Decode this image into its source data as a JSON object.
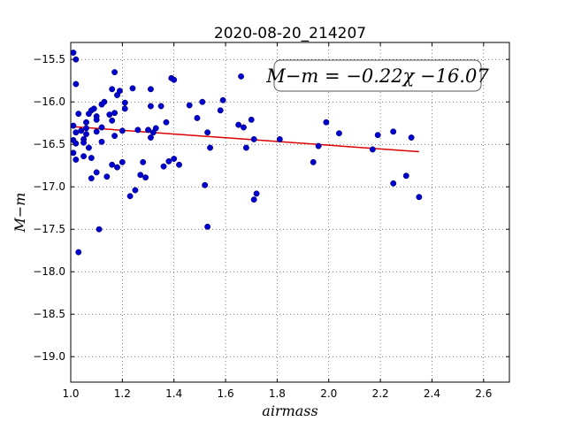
{
  "chart_data": {
    "type": "scatter",
    "title": "2020-08-20_214207",
    "xlabel": "airmass",
    "ylabel": "M−m",
    "xlim": [
      1.0,
      2.7
    ],
    "ylim": [
      -19.3,
      -15.3
    ],
    "y_inverted": true,
    "grid": true,
    "xticks": [
      1.0,
      1.2,
      1.4,
      1.6,
      1.8,
      2.0,
      2.2,
      2.4,
      2.6
    ],
    "xtick_labels": [
      "1.0",
      "1.2",
      "1.4",
      "1.6",
      "1.8",
      "2.0",
      "2.2",
      "2.4",
      "2.6"
    ],
    "yticks": [
      -15.5,
      -16.0,
      -16.5,
      -17.0,
      -17.5,
      -18.0,
      -18.5,
      -19.0
    ],
    "ytick_labels": [
      "−15.5",
      "−16.0",
      "−16.5",
      "−17.0",
      "−17.5",
      "−18.0",
      "−18.5",
      "−19.0"
    ],
    "annotation": "M−m = −0.22χ −16.07",
    "colors": {
      "points": "#0000cc",
      "fit_line": "#dd0000"
    },
    "fit_line": {
      "slope": -0.22,
      "intercept": -16.07,
      "x_range": [
        1.01,
        2.35
      ]
    },
    "points": [
      [
        1.01,
        -15.42
      ],
      [
        1.02,
        -15.5
      ],
      [
        1.02,
        -15.79
      ],
      [
        1.01,
        -16.28
      ],
      [
        1.02,
        -16.36
      ],
      [
        1.03,
        -16.14
      ],
      [
        1.01,
        -16.45
      ],
      [
        1.02,
        -16.49
      ],
      [
        1.01,
        -16.6
      ],
      [
        1.02,
        -16.68
      ],
      [
        1.03,
        -17.77
      ],
      [
        1.04,
        -16.34
      ],
      [
        1.05,
        -16.44
      ],
      [
        1.05,
        -16.48
      ],
      [
        1.05,
        -16.64
      ],
      [
        1.06,
        -16.24
      ],
      [
        1.06,
        -16.31
      ],
      [
        1.06,
        -16.38
      ],
      [
        1.07,
        -16.14
      ],
      [
        1.07,
        -16.54
      ],
      [
        1.08,
        -16.1
      ],
      [
        1.08,
        -16.66
      ],
      [
        1.08,
        -16.9
      ],
      [
        1.09,
        -16.08
      ],
      [
        1.1,
        -16.17
      ],
      [
        1.1,
        -16.21
      ],
      [
        1.1,
        -16.35
      ],
      [
        1.1,
        -16.83
      ],
      [
        1.11,
        -17.5
      ],
      [
        1.12,
        -16.03
      ],
      [
        1.12,
        -16.3
      ],
      [
        1.12,
        -16.47
      ],
      [
        1.13,
        -16.0
      ],
      [
        1.14,
        -16.88
      ],
      [
        1.15,
        -16.15
      ],
      [
        1.16,
        -15.85
      ],
      [
        1.16,
        -16.22
      ],
      [
        1.16,
        -16.74
      ],
      [
        1.17,
        -15.65
      ],
      [
        1.17,
        -16.13
      ],
      [
        1.17,
        -16.4
      ],
      [
        1.18,
        -16.77
      ],
      [
        1.18,
        -15.92
      ],
      [
        1.19,
        -15.87
      ],
      [
        1.2,
        -16.34
      ],
      [
        1.2,
        -16.71
      ],
      [
        1.21,
        -16.01
      ],
      [
        1.21,
        -16.08
      ],
      [
        1.23,
        -17.11
      ],
      [
        1.24,
        -15.84
      ],
      [
        1.25,
        -17.04
      ],
      [
        1.26,
        -16.33
      ],
      [
        1.27,
        -16.86
      ],
      [
        1.28,
        -16.71
      ],
      [
        1.29,
        -16.89
      ],
      [
        1.3,
        -16.33
      ],
      [
        1.31,
        -16.05
      ],
      [
        1.31,
        -16.42
      ],
      [
        1.31,
        -15.85
      ],
      [
        1.32,
        -16.36
      ],
      [
        1.33,
        -16.31
      ],
      [
        1.35,
        -16.05
      ],
      [
        1.36,
        -16.76
      ],
      [
        1.37,
        -16.24
      ],
      [
        1.38,
        -16.7
      ],
      [
        1.39,
        -15.72
      ],
      [
        1.4,
        -15.74
      ],
      [
        1.4,
        -16.67
      ],
      [
        1.42,
        -16.74
      ],
      [
        1.46,
        -16.04
      ],
      [
        1.49,
        -16.19
      ],
      [
        1.51,
        -16.0
      ],
      [
        1.52,
        -16.98
      ],
      [
        1.53,
        -17.47
      ],
      [
        1.53,
        -16.36
      ],
      [
        1.54,
        -16.54
      ],
      [
        1.58,
        -16.1
      ],
      [
        1.59,
        -15.98
      ],
      [
        1.65,
        -16.27
      ],
      [
        1.66,
        -15.7
      ],
      [
        1.67,
        -16.3
      ],
      [
        1.68,
        -16.54
      ],
      [
        1.7,
        -16.21
      ],
      [
        1.71,
        -16.44
      ],
      [
        1.71,
        -17.15
      ],
      [
        1.72,
        -17.08
      ],
      [
        1.81,
        -16.44
      ],
      [
        1.94,
        -16.71
      ],
      [
        1.96,
        -16.52
      ],
      [
        1.99,
        -16.24
      ],
      [
        2.04,
        -16.37
      ],
      [
        2.17,
        -16.56
      ],
      [
        2.19,
        -16.39
      ],
      [
        2.25,
        -16.35
      ],
      [
        2.25,
        -16.96
      ],
      [
        2.3,
        -16.87
      ],
      [
        2.32,
        -16.42
      ],
      [
        2.35,
        -17.12
      ]
    ]
  }
}
